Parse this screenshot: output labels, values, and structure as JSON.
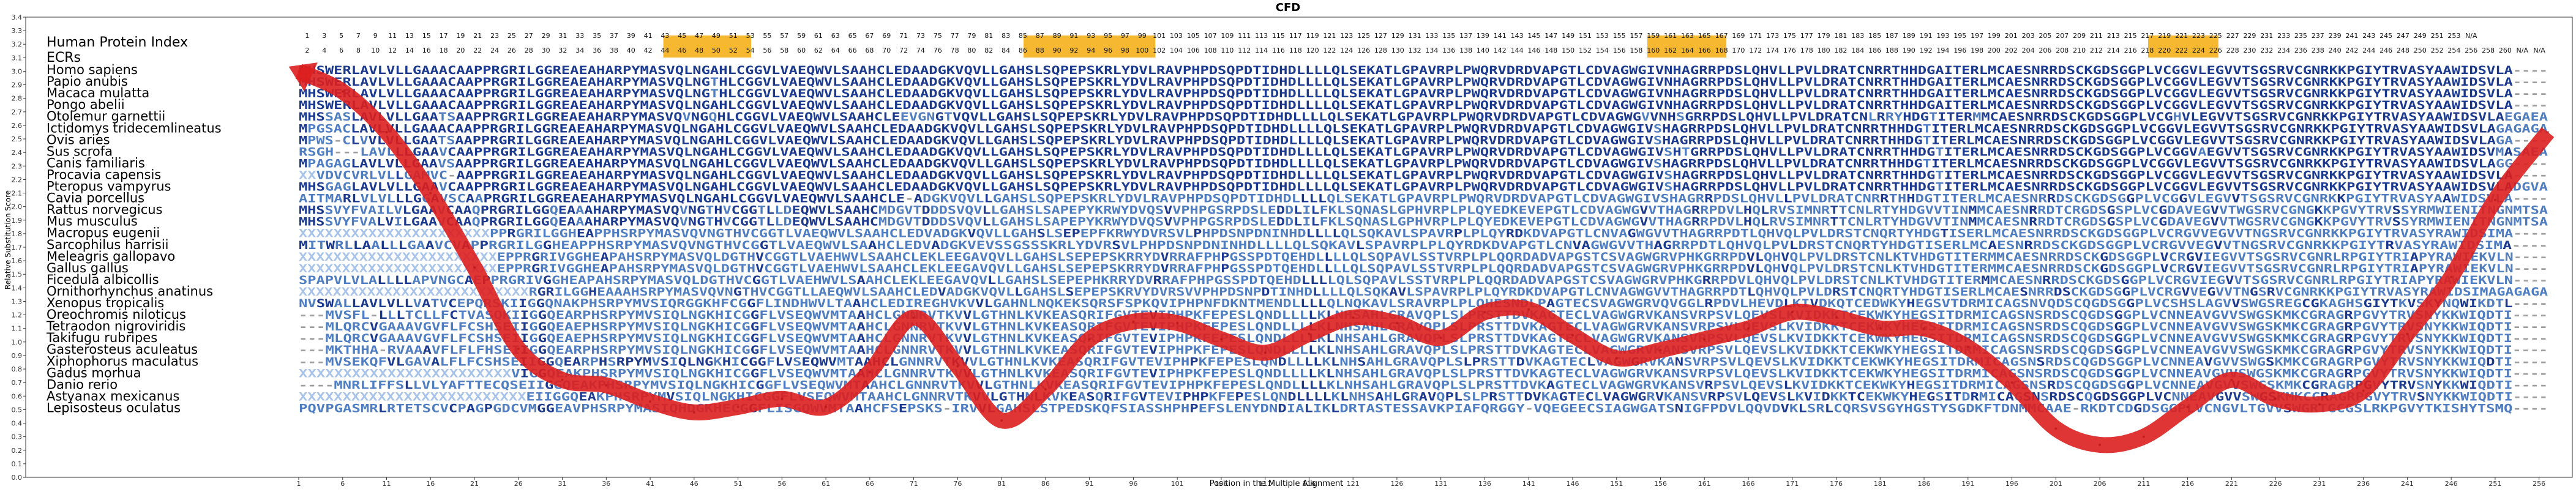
{
  "chart_data": {
    "type": "line",
    "title": "CFD",
    "xlabel": "Position in the Multiple Alignment",
    "ylabel": "Relative Substitution Score",
    "ylim": [
      0.0,
      3.4
    ],
    "yticks": [
      "0.0",
      "0.1",
      "0.2",
      "0.3",
      "0.4",
      "0.5",
      "0.6",
      "0.7",
      "0.8",
      "0.9",
      "1.0",
      "1.1",
      "1.2",
      "1.3",
      "1.4",
      "1.5",
      "1.6",
      "1.7",
      "1.8",
      "1.9",
      "2.0",
      "2.1",
      "2.2",
      "2.3",
      "2.4",
      "2.5",
      "2.6",
      "2.7",
      "2.8",
      "2.9",
      "3.0",
      "3.1",
      "3.2",
      "3.3",
      "3.4"
    ],
    "xlim": [
      1,
      257
    ],
    "xticks": [
      1,
      6,
      11,
      16,
      21,
      26,
      31,
      36,
      41,
      46,
      51,
      56,
      61,
      66,
      71,
      76,
      81,
      86,
      91,
      96,
      101,
      106,
      111,
      116,
      121,
      126,
      131,
      136,
      141,
      146,
      151,
      156,
      161,
      166,
      171,
      176,
      181,
      186,
      191,
      196,
      201,
      206,
      211,
      216,
      221,
      226,
      231,
      236,
      241,
      246,
      251,
      256
    ],
    "grid": false,
    "panel_title": "Human Protein Index",
    "ecr_label": "ECRs",
    "protein_index_odd": [
      1,
      3,
      5,
      7,
      9,
      11,
      13,
      15,
      17,
      19,
      21,
      23,
      25,
      27,
      29,
      31,
      33,
      35,
      37,
      39,
      41,
      43,
      45,
      47,
      49,
      51,
      53,
      55,
      57,
      59,
      61,
      63,
      65,
      67,
      69,
      71,
      73,
      75,
      77,
      79,
      81,
      83,
      85,
      87,
      89,
      91,
      93,
      95,
      97,
      99,
      101,
      103,
      105,
      107,
      109,
      111,
      113,
      115,
      117,
      119,
      121,
      123,
      125,
      127,
      129,
      131,
      133,
      135,
      137,
      139,
      141,
      143,
      145,
      147,
      149,
      151,
      153,
      155,
      157,
      159,
      161,
      163,
      165,
      167,
      169,
      171,
      173,
      175,
      177,
      179,
      181,
      183,
      185,
      187,
      189,
      191,
      193,
      195,
      197,
      199,
      201,
      203,
      205,
      207,
      209,
      211,
      213,
      215,
      217,
      219,
      221,
      223,
      225,
      227,
      229,
      231,
      233,
      235,
      237,
      239,
      241,
      243,
      245,
      247,
      249,
      251,
      253,
      "N/A"
    ],
    "protein_index_even": [
      2,
      4,
      6,
      8,
      10,
      12,
      14,
      16,
      18,
      20,
      22,
      24,
      26,
      28,
      30,
      32,
      34,
      36,
      38,
      40,
      42,
      44,
      46,
      48,
      50,
      52,
      54,
      56,
      58,
      60,
      62,
      64,
      66,
      68,
      70,
      72,
      74,
      76,
      78,
      80,
      82,
      84,
      86,
      88,
      90,
      92,
      94,
      96,
      98,
      100,
      102,
      104,
      106,
      108,
      110,
      112,
      114,
      116,
      118,
      120,
      122,
      124,
      126,
      128,
      130,
      132,
      134,
      136,
      138,
      140,
      142,
      144,
      146,
      148,
      150,
      152,
      154,
      156,
      158,
      160,
      162,
      164,
      166,
      168,
      170,
      172,
      174,
      176,
      178,
      180,
      182,
      184,
      186,
      188,
      190,
      192,
      194,
      196,
      198,
      200,
      202,
      204,
      206,
      208,
      210,
      212,
      214,
      216,
      218,
      220,
      222,
      224,
      226,
      228,
      230,
      232,
      234,
      236,
      238,
      240,
      242,
      244,
      246,
      248,
      250,
      252,
      254,
      256,
      258,
      260,
      "N/A",
      "N/A"
    ],
    "ecr_regions": [
      [
        43,
        52
      ],
      [
        84,
        98
      ],
      [
        155,
        163
      ],
      [
        212,
        219
      ]
    ],
    "species": [
      {
        "name": "Homo sapiens",
        "seq": "MHSWERLAVLVLLGAAACAAPPRGRILGGREAEAHARPYMASVQLNGAHLCGGVLVAEQWVLSAAHCLEDAADGKVQVLLGAHSLSQPEPSKRLYDVLRAVPHPDSQPDTIDHDLLLLQLSEKATLGPAVRPLPWQRVDRDVAPGTLCDVAGWGIVNHAGRRPDSLQHVLLPVLDRATCNRRTHHDGAITERLMCAESNRRDSCKGDSGGPLVCGGVLEGVVTSGSRVCGNRKKPGIYTRVASYAAWIDSVLA----"
      },
      {
        "name": "Papio anubis",
        "seq": "MHSWERLAVLVLLGAAACAAPPRGRILGGREAEAHARPYMASVQLNGTHLCGGVLVAEQWVLSAAHCLEDAADGKVQVLLGAHSLSQPEPSKRLYDVLRAVPHPDSQPDTIDHDLLLLQLSEKATLGPAVRPLPWQRVDRDVAPGTLCDVAGWGIVNHAGRRPDSLQHVLLPVLDRATCNRRTHHDGAITERLMCAESNRRDSCKGDSGGPLVCGGVLEGVVTSGSRVCGNRKKPGIYTRVASYAAWIDSVLA----"
      },
      {
        "name": "Macaca mulatta",
        "seq": "MHSWERLAVLVLLGAAACAAPPRGRILGGREAEAHARPYMASVQLNGTHLCGGVLVAEQWVLSAAHCLEDAADGKVQVLLGAHSLSQPEPSKRLYDVLRAVPHPDSQPDTIDHDLLLLQLSEKATLGPAVRPLPWQRVDRDVAPGTLCDVAGWGIVNHAGRRPDSLQHVLLPVLDRATCNRRTHHDGAITERLMCAESNRRDSCKGDSGGPLVCGGVLEGVVTSGSRVCGNRKKPGIYTRVASYAAWIDSVLA----"
      },
      {
        "name": "Pongo abelii",
        "seq": "MHSWERLAVLVLLGAAACAAPPRGRILGGREAEAHARPYMASVQLNGAHLCGGVLVAEQWVLSAAHCLEDAADGKVQVLLGAHSLSQPEPSKRLYDVLRAVPHPDSQPDTIDHDLLLLQLSEKATLGPAVRPLPWQRVDRDVAPGTLCDVAGWGIVNHAGRRPDSLQHVLLPVLDRATCNRRTHHDGAITERLMCAESNRRDSCKGDSGGPLVCGGVLEGVVTSGSRVCGNRKKPGIYTRVASYAAWIDSVLA----"
      },
      {
        "name": "Otolemur garnettii",
        "seq": "MHSSASLAVLVLLGAATSAAPPRGRILGGREAEAHARPYMASVQVNGQHLCGGVLVAEQWVLSAAHCLEEVGNGTVQVLLGAHSLSQPEPSKRLYDVLRAVPHPDSQPDTIDHDLLLLQLSEKATLGPAVRPLPWQRVDRDVAPGTLCDVAGWGVVNHSGRRPDSLQHVLLPVLDRATCNLRRYHDGTITERMMCAESNRRDSCKGDSGGPLVCGHVLEGVVTSGSRVCGNRKKPGIYTRVASYAAWIDSVLAEGAEA"
      },
      {
        "name": "Ictidomys tridecemlineatus",
        "seq": "MPGSACLAVLVLLGAAACAAPPRGRILGGREAEAHARPYMASVQLNGAHLCGGVLVAEQWVLSAAHCLEDAADGKVQVLLGAHSLSQPEPSKRLYDVLRAVPHPDSQPDTIDHDLLLLQLSEKATLGPAVRPLPWQRVDRDVAPGTLCDVAGWGIVSHAGRRPDSLQHVLLPVLDRATCNRRTHHDGTITERLMCAESNRRDSCKGDSGGPLVCGGVLEGVVTSGSRVCGNRKKPGIYTRVASYAAWIDSVLAGAGAGA"
      },
      {
        "name": "Ovis aries",
        "seq": "MPWS-CLVVLVLLGAATSAAPPRGRILGGREAEAHARPYMASVQLNGAHLCGGVLVAEQWVLSAAHCLEDAADGKVQVLLGAHSLSQPEPSKRLYDVLRAVPHPDSQPDTIDHDLLLLQLSEKATLGPAVRPLPWQRVDRDVAPGTLCDVAGWGIVSHAGRRPDSLQHVLLPVLDRATCNRRTHHDGTITERLMCAESNRRDSCKGDSGGPLVCGGVLEGVVTSGSRVCGNRKKPGIYTRVASYAAWIDSVLAGA----"
      },
      {
        "name": "Sus scrofa",
        "seq": "RSGH---LAVLLLGAAVCAAPPRGRILGGREAEAHARPYMASVQLNGAHLCGGVLVAEQWVLSAAHCLEDAADGKVQVLLGAHSLSQPEPSKRLYDVLRAVPHPDSQPDTIDHDLLLLQLSEKATLGPAVRPLPWQRVDRDVAPGTLCDVAGWGIVSHTGRRPDSLQHVLLPVLDRATCNRRTHHDGTITERLMCAESNRRDSCKGDSGGPLVCGGVAEGVVTSGSRVCGNRKKPGIYTRVASYAAWIDSVMASAEA"
      },
      {
        "name": "Canis familiaris",
        "seq": "MPAGAGLAVLVLLGAAVSAAPPRGRILGGREAEAHARPYMASVQLNGAHLCGGVLVAEQWVLSAAHCLEDAADGKVQVLLGAHSLSQPEPSKRLYDVLRAVPHPDSQPDTIDHDLLLLQLSEKATLGPAVRPLPWQRVDRDVAPGTLCDVAGWGIVSHAGRRPDSLQHVLLPVLDRATCNRRTHHDGTITERLMCAESNRRDSCKGDSGGPLVCGGVLEGVVTSGSRVCGNRKKPGIYTRVASYAAWIDSVLAGG----"
      },
      {
        "name": "Procavia capensis",
        "seq": "XXVDVCVRLVLLGAMVC-AAPPRGRILGGREAEAHARPYMASVQLNGAHLCGGVLVAEQWVLSAAHCLEDAADGKVQVLLGAHSLSQPEPSKRLYDVLRAVPHPDSQPDTIDHDLLLLQLSEKATLGPAVRPLPWQRVDRDVAPGTLCDVAGWGIVSHAGRRPDSLQHVLLPVLDRATCNRRTHHDGTITERLMCAESNRRDSCKGDSGGPLVCGGVLEGVVTSGSRVCGNRKKPGIYTRVASYAAWIDSVLA----"
      },
      {
        "name": "Pteropus vampyrus",
        "seq": "MHSGAGLAVLVLLGAAVCAAPPRGRILGGREAEAHARPYMASVQLNGAHLCGGVLVAEQWVLSAAHCLEDAADGKVQVLLGAHSLSQPEPSKRLYDVLRAVPHPDSQPDTIDHDLLLLQLSEKATLGPAVRPLPWQRVDRDVAPGTLCDVAGWGIVSHAGRRPDSLQHVLLPVLDRATCNRRTHHDGTITERLMCAESNRRDSCKGDSGGPLVCGGVLEGVVTSGSRVCGNRKKPGIYTRVASYAAWIDSVLADGVA"
      },
      {
        "name": "Cavia porcellus",
        "seq": "AITMARLVLVLLLGGAVSCAAPRGRILGGREAEAHARPYMASVQLNGAHLCGGVLVAEQWVLSAAHCLE-ADGKVQVLLGAHSLSQPEPSKRLYDVLRAVPHPDSQPDTIDHDLLLLQLSEKATLGPAVRPLPWQRVDRDVAPGTLCDVAGWGIVSHAGRRPDSLQHVLLPVLDRATCNRRTHHDGTITERLMCAESNRRDSCKGDSGGPLVCGGVLEGVVTSGSRVCGNRKKPGIYTRVASYAAWIDSVLA----"
      },
      {
        "name": "Rattus norvegicus",
        "seq": "MHSSVYFVAILVLGAAVCAAQPRGRILGGQEAAAHARPYMASVQVNGTHVCGGTLLDEQWVLSAAHCMDGVTDDDSVQVLLGAHSLSAPEPYKRWYDVQSVVPHPGSRPDSLEDDLILFKLSQNASLGPHVRPLPLQYEDKEVEPGTLCDVAGWGVVTHAGRRPDVLHQLRVSIMNRTTCNLRTYHDGVVTINMMCAESNRRDTCRGDSGSPLVCGDAVEGVVTWGSRVCGNGKKPGVYTRVSSYRMWIENITNGNMTSA"
      },
      {
        "name": "Mus musculus",
        "seq": "MHSSVYFVALVILGAAVCAAQPRGRILGGQEAAAHARPYMASVQVNGTHVCGGTLLDEQWVLSAAHCMDGVTDDDSVQVLLGAHSLSAPEPYKRWYDVQSVVPHPGSRPDSLEDDLILFKLSQNASLGPHVRPLPLQYEDKEVEPGTLCDVAGWGVVTHAGRRPDVLHQLRVSIMNRTTCNLRTYHDGVVTINMMCAESNRRDTCRGDSGSPLVCGDAVEGVVTWGSRVCGNGKKPGVYTRVSSYRMWIENITNGNMTSA"
      },
      {
        "name": "Macropus eugenii",
        "seq": "XXXXXXXXXXXXXXXXXXXXXXPPRGRILGGHEAPPHSRPYMASVQVNGTHVCGGTLVAEQWVLSAAHCLEDVADGKVQVLLGAHSLSEPEPFKRWYDVRSVLPHPDSNPDNINHDLLLLQLSQKAVLSPAVRPLPLQYRDKDVAPGTLCNVAGWGVVTHAGRRPDTLQHVQLPVLDRSTCNQRTYHDGTISERLMCAESNRRDSCKGDSGGPLVCRGVVEGVVTNGSRVCGNRKKPGIYTRVASYRAWIDSIMA----"
      },
      {
        "name": "Sarcophilus harrisii",
        "seq": "MITWRLLAALLLGAAVCVAPPRGRILGGHEAPPHSRPYMASVQVNGTHVCGGTLVAEQWVLSAAHCLEDVADGKVEVSSGSSSKRLYDVRSVLPHPDSNPDNINHDLLLLQLSQKAVLSPAVRPLPLQYRDKDVAPGTLCNVAGWGVVTHAGRRPDTLQHVQLPVLDRSTCNQRTYHDGTISERLMCAESNRRDSCKGDSGGPLVCRGVVEGVVTNGSRVCGNRKKPGIYTRVASYRAWIDSIMA----"
      },
      {
        "name": "Meleagris gallopavo",
        "seq": "XXXXXXXXXXXXXXXXXXXXXXXEPPRGRIVGGHEAPAHSRPYMASVQLDGTHVCGGTLVAEHWVLSAAHCLEKLEEGAVQVLLGAHSLSEPEPSKRRYDVRRAFPHPGSSPDTQEHDLLLLQLSQPAVLSSTVRPLPLQQRDADVAPGSTCSVAGWGRVPHKGRRPDVLQHVQLPVLDRSTCNLKTVHDGTITERMMCAESNRRDSCKGDSGGPLVCRGVIEGVVTSGSRVCGNRLRPGIYTRIAPYRAWIEKVLN----"
      },
      {
        "name": "Gallus gallus",
        "seq": "XXXXXXXXXXXXXXXXXXXXXXXEPPRGRIVGGHEAPAHSRPYMASVQLDGTHVCGGTLVAEHWVLSAAHCLEKLEEGAVQVLLGAHSLSEPEPSKRRYDVRRAFPHPGSSPDTQEHDLLLLQLSQPAVLSSTVRPLPLQQRDADVAPGSTCSVAGWGRVPHKGRRPDVLQHVQLPVLDRSTCNLKTVHDGTITERMMCAESNRRDSCKGDSGGPLVCRGVIEGVVTSGSRVCGNRLRPGIYTRIAPYRAWIEKVLN----"
      },
      {
        "name": "Ficedula albicollis",
        "seq": "SPAPVLVLALLLLAPVNGCAEPPRGRIVGGHEAPAHSRPYMASVQLDGTHVCGGTLVAEHWVLSAAHCLEKLEEGAVQVLLGAHSLSEPEPHKRRYDVRRAFPHPGSSPDTQEHDLLLLQLSQPAVLSSTVRPLPLQQRDADVAPGSTCSVAGWGRVPHKGRRPDVLQHVQLPVLDRSTCNLKTVHDGTITERMMCAESNRRDSCKGDSGGPLVCRGVIEGVVTSGSRVCGNRLRPGIYTRIAPYRAWIEKVLN----"
      },
      {
        "name": "Ornithorhynchus anatinus",
        "seq": "XXXXXXXXXXXXXXXXXXXXXXXXXXXRGRILGGHEAAAHSRPYMASVQVNGTHVCGGTLLAEQWVLSAAHCLEDVADGKVQVLLGAHSLSEPEPSKRVYDVRSVVPHPDSNPDTINHDLLLLQLSQKAVLSPAVRPLPLQYRDKDVAPGTLCNVAGWGVVTHAGRRPDTLQHVQLPVLDRSTCNQRTYHDGTISERLMCAESNRRDSCKGDSGGPLVCRGVVEGVVTNGSRVCGNRKKPGIYTRVASYRAWIDSIMAGAGAGA"
      },
      {
        "name": "Xenopus tropicalis",
        "seq": "NVSWALLAVLVLLVATVCEPQRSKIIGGQNAKPHSRPYMVSIQRGGKHFCGGFLINDHWVLTAAHCLEDIREGHVKVVLGAHNLNQKEKSQRSFSPKQVIPHPNFDKNTMENDLLLLQLNQKAVLSRAVRPLPLQHESNDLPAGTECSVAGWGRVQVGGLRPDVLHEVDLKIVDKQTCEDWKYHEGSVTDRMICAGSNVQDSCQGDSGGPLVCSHSLAGVVSWGSREGCGKAGHSGIYTKVSKYNQWIKDTL----"
      },
      {
        "name": "Oreochromis niloticus",
        "seq": "---MVSFL-LLLTCLLFCTVASQKIIGGQEARPHSRPYMVSIQLNGKHICGGFLVSEQWVMTAAHCLGNNRVTKVVLGTHNLKVKEASQRIFGVTEVIPHPKFEPESLQNDLLLLKLNHSAHLGRAVQPLSLPRSTTDVKAGTECLVAGWGRVKANSVRPSVLQEVSLKVIDKKTCEKWKYHEGSITDRMICAGSNSRDSCQGDSGGPLVCNNEAVGVVSWGSKMKCGRAGRPGVYTRVSNYKKWIQDTI----"
      },
      {
        "name": "Tetraodon nigroviridis",
        "seq": "---MLQRCVGAAAVGVFLFCSHSEIIGGQEAEPHSRPYMVSIQLNGKHICGGFLVSEQWVMTAAHCLGNNRVTKVVLGTHNLKVKEASQRIFGVTEVIPHPKFEPESLQNDLLLLKLNHSAHLGRAVQPLSLPRSTTDVKAGTECLVAGWGRVKANSVRPSVLQEVSLKVIDKKTCEKWKYHEGSITDRMICAGSNSRDSCQGDSGGPLVCNNEAVGVVSWGSKMKCGRAGRPGVYTRVSNYKKWIQDTI----"
      },
      {
        "name": "Takifugu rubripes",
        "seq": "---MLQRCVGAAAVGVFLFCSHSEIIGGQEAEPHSRPYMVSIQLNGKHICGGFLVSEQWVMTAAHCLGNNRVTKVVLGTHNLKVKEASQRIFGVTEVIPHPKFEPESLQNDLLLLKLNHSAHLGRAVQPLSLPRSTTDVKAGTECLVAGWGRVKANSVRPSVLQEVSLKVIDKKTCEKWKYHEGSITDRMICAGSNSRDSCQGDSGGPLVCNNEAVGVVSWGSKMKCGRAGRPGVYTRVSNYKKWIQDTI----"
      },
      {
        "name": "Gasterosteus aculeatus",
        "seq": "---MKTHHA-RVAAAVFLFLFHSEIIGGQEARPHSRPYMVSIQLNGKHICGGFLVSEQWVMTAAHCLGNNRVTKVVLGTHNLKVKEASQRIFGVTEVIPHPKFEPESLQNDLLLLKLNHSAHLGRAVQPLSLPRSTTDVKAGTECLVAGWGRVKANSVRPSVLQEVSLKVIDKKTCEKWKYHEGSITDRMICAGSNSRDSCQGDSGGPLVCNNEAVGVVSWGSKMKCGRAGRPGVYTRVSNYKKWIQDTI----"
      },
      {
        "name": "Xiphophorus maculatus",
        "seq": "---MVSEKQFVLGAVALFLFCSHSEIIGGQEARPHSRPYMVSIQLNGKHICGGFLVSEQWVMTAAHCLGNNRVTKVVLGTHNLKVKEASQRIFGVTEVIPHPKFEPESLQNDLLLLKLNHSAHLGRAVQPLSLPRSTTDVKAGTECLVAGWGRVKANSVRPSVLQEVSLKVIDKKTCEKWKYHEGSITDRMICAGSNSRDSCQGDSGGPLVCNNEAVGVVSWGSKMKCGRAGRPGVYTRVSNYKKWIQDTI----"
      },
      {
        "name": "Gadus morhua",
        "seq": "XXXXXXXXXXXXXXXXXXXXXXXXVIGGQEAKPHSRPYMVSIQLNGKHICGGFLVSEQWVMTAAHCLGNNRVTKVVLGTHNLKVKEASQRIFGVTEVIPHPKFEPESLQNDLLLLKLNHSAHLGRAVQPLSLPRSTTDVKAGTECLVAGWGRVKANSVRPSVLQEVSLKVIDKKTCEKWKYHEGSITDRMICAGSNSRDSCQGDSGGPLVCNNEAVGVVSWGSKMKCGRAGRPGVYTRVSNYKKWIQDTI----"
      },
      {
        "name": "Danio rerio",
        "seq": "----MNRLIFFSLLVLYAFTTECQSEIIGGQEAKPHSRPYMVSIQLNGKHICGGFLVSEQWVMTAAHCLGNNRVTKVVLGTHNLKVKEASQRIFGVTEVIPHPKFEPESLQNDLLLLKLNHSAHLGRAVQPLSLPRSTTDVKAGTECLVAGWGRVKANSVRPSVLQEVSLKVIDKKTCEKWKYHEGSITDRMICAGSNSRDSCQGDSGGPLVCNNEAVGVVSWGSKMKCGRAGRPGVYTRVSNYKKWIQDTI----"
      },
      {
        "name": "Astyanax mexicanus",
        "seq": "XXXXXXXXXXXXXXXXXXXXXXXXXXEIIGGQEAKPHSRPYMVSIQLNGKHICGGFLVSEQWVMTAAHCLGNNRVTKVVLGTHNLKVKEASQRIFGVTEVIPHPKFEPESLQNDLLLLKLNHSAHLGRAVQPLSLPRSTTDVKAGTECLVAGWGRVKANSVRPSVLQEVSLKVIDKKTCEKWKYHEGSITDRMICAGSNSRDSCQGDSGGPLVCNNEAVGVVSWGSKMKCGRAGRPGVYTRVSNYKKWIQDTI----"
      },
      {
        "name": "Lepisosteus oculatus",
        "seq": "PQVPGASMRLRTETSCVCPAGPGDCVMGGEAVPHSRPYMASIQHDGKHECGGFLISGQWVMTAAHCFSEPSKS-IRVVLGAHSLSTPEDSKQFSIASSHPHPEFSLENYDNDIALIKLDRTASTESSAVKPIAFQRGGY-VQEGEECSIAGWGATSNIGFPDVLQQVDVKLSRLCQRSVSGYHGSTYSGDKFTDNMMCAAE-RKDTCDGDSGGPLVCNGVLTGVVSWGRTGCGSLRKPGVYTKISHYTSMQ----"
      }
    ],
    "series": [
      {
        "x": [
          1,
          6,
          11,
          16,
          21,
          26,
          31,
          36,
          41,
          46,
          51,
          56,
          61,
          66,
          71,
          76,
          81,
          86,
          91,
          96,
          101,
          106,
          111,
          116,
          121,
          126,
          131,
          136,
          141,
          146,
          151,
          156,
          161,
          166,
          171,
          176,
          181,
          186,
          191,
          196,
          201,
          206,
          211,
          216,
          221,
          226,
          231,
          236,
          241,
          246,
          251,
          257
        ],
        "values": [
          3.0,
          2.85,
          2.55,
          2.1,
          1.55,
          0.95,
          0.72,
          0.68,
          0.56,
          0.48,
          0.52,
          0.58,
          0.52,
          0.78,
          1.18,
          0.82,
          0.42,
          0.65,
          1.02,
          1.15,
          1.14,
          1.02,
          0.92,
          1.06,
          1.18,
          1.14,
          1.03,
          1.22,
          1.24,
          1.05,
          0.88,
          0.94,
          1.02,
          1.1,
          1.22,
          1.18,
          1.1,
          1.1,
          0.96,
          0.7,
          0.36,
          0.24,
          0.3,
          0.52,
          0.72,
          0.58,
          0.54,
          0.64,
          1.06,
          1.48,
          2.05,
          2.55
        ]
      }
    ],
    "colors": {
      "trend": "#dd1f1f",
      "ecr": "#f5b019",
      "conserved_high": "#1b3a8f",
      "conserved_mid": "#4f7dc2",
      "conserved_low": "#a7c3ea",
      "gap": "#9e9e9e"
    }
  }
}
